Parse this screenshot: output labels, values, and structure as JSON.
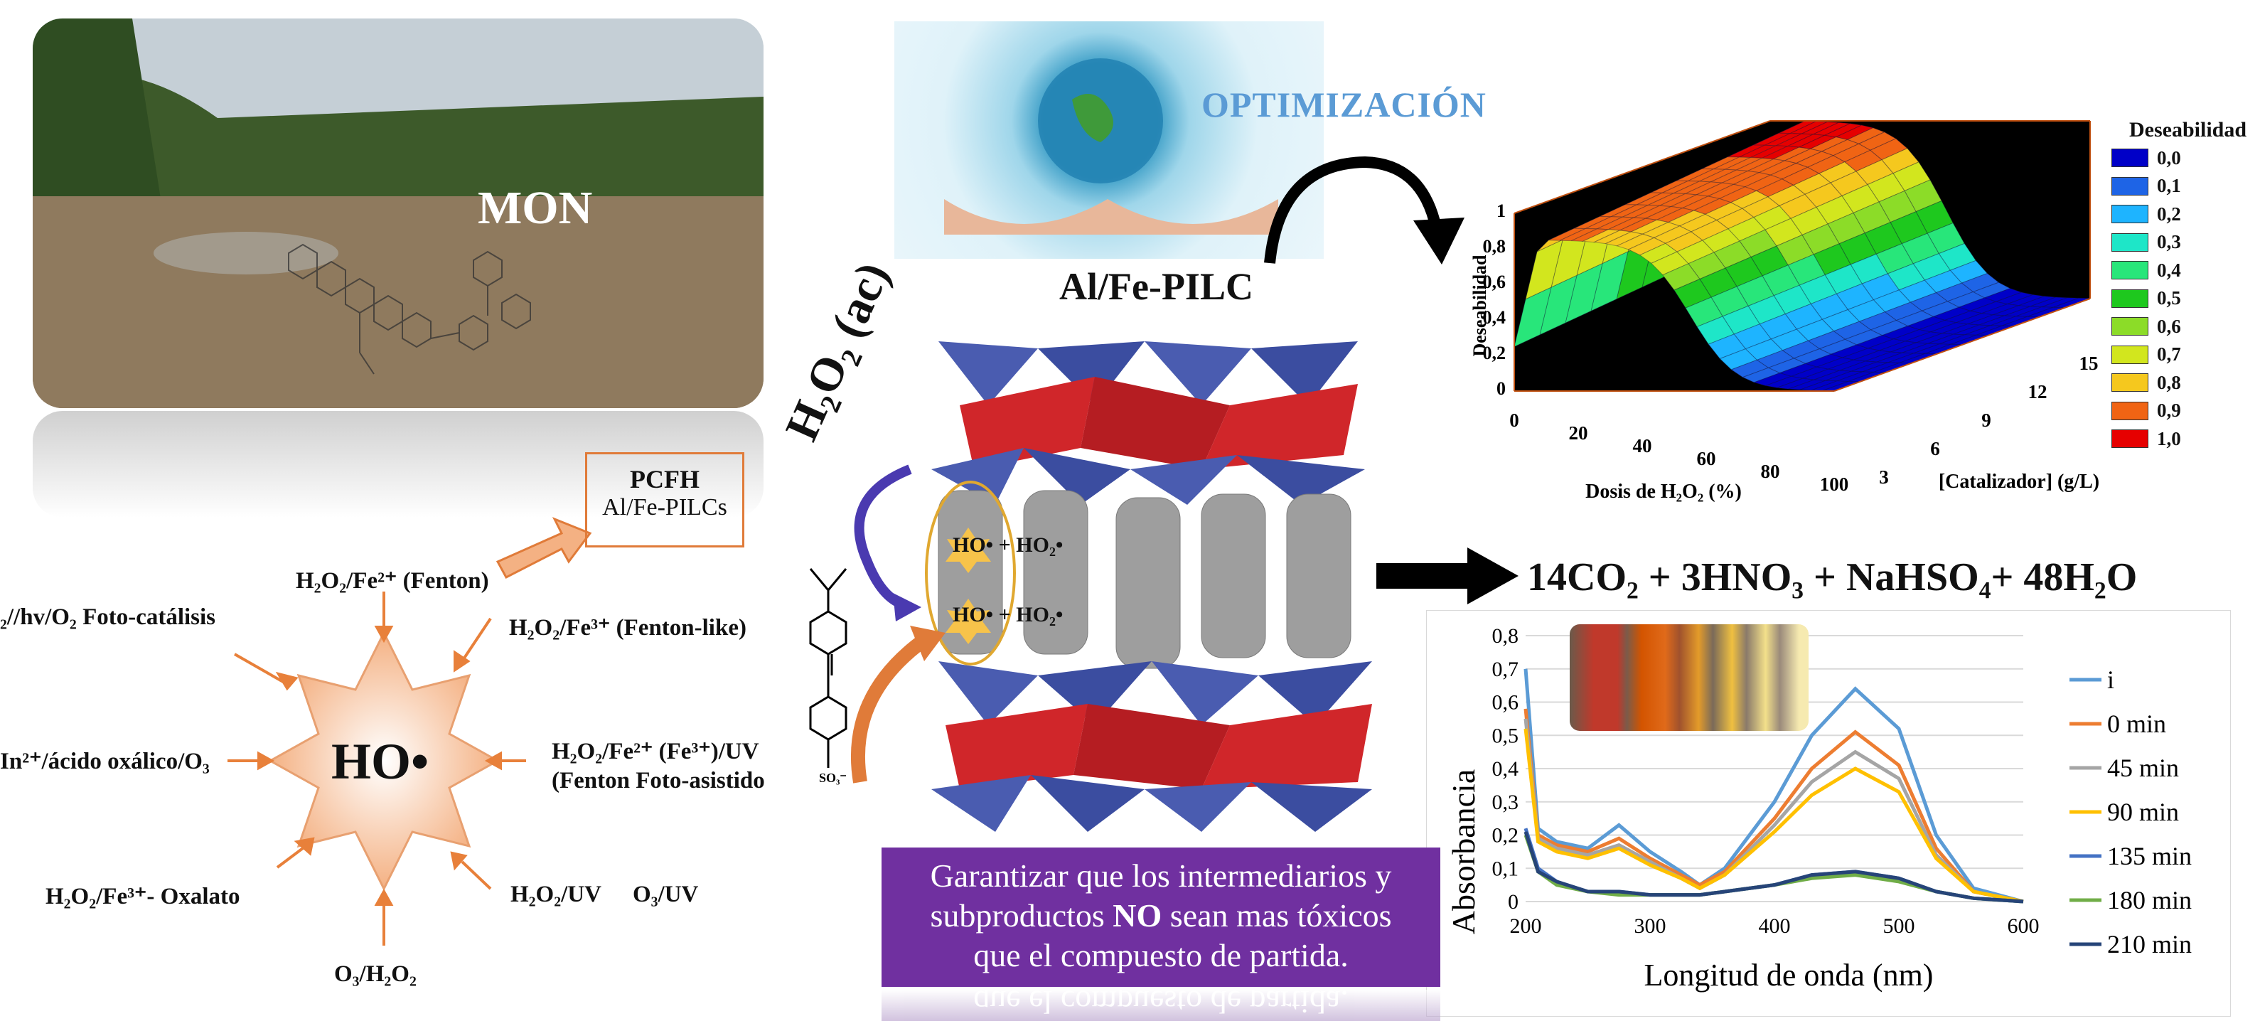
{
  "mon": {
    "label": "MON"
  },
  "optimization": {
    "label": "OPTIMIZACIÓN"
  },
  "catalyst": {
    "label": "Al/Fe-PILC"
  },
  "pcfh": {
    "line1": "PCFH",
    "line2": "Al/Fe-PILCs"
  },
  "radical": {
    "center": "HO•"
  },
  "processes": {
    "fenton": "H₂O₂/Fe²⁺ (Fenton)",
    "fenton_like": "H₂O₂/Fe³⁺ (Fenton-like)",
    "photo_catalysis": "₂//hv/O₂ Foto-catálisis",
    "oxalic": "In²⁺/ácido oxálico/O₃",
    "photo_fenton_1": "H₂O₂/Fe²⁺ (Fe³⁺)/UV",
    "photo_fenton_2": "(Fenton Foto-asistido",
    "oxalato": "H₂O₂/Fe³⁺- Oxalato",
    "h2o2_uv": "H₂O₂/UV",
    "o3_uv": "O₃/UV",
    "o3_h2o2": "O₃/H₂O₂"
  },
  "clay": {
    "reagent": "H₂O₂ (ac)",
    "radical_pair_1": "HO• + HO₂•",
    "radical_pair_2": "HO• + HO₂•",
    "sulfonate": "SO₃⁻"
  },
  "reaction": {
    "equation": "14CO₂ + 3HNO₃ + NaHSO₄+ 48H₂O"
  },
  "message": {
    "line1": "Garantizar que los intermediarios y",
    "line2_pre": "subproductos ",
    "line2_bold": "NO",
    "line2_post": " sean mas tóxicos",
    "line3": "que el compuesto de partida."
  },
  "colors": {
    "orange": "#e07b39",
    "purple": "#7030a0",
    "optim_blue": "#5b9bd5"
  },
  "chart_data": [
    {
      "type": "surface",
      "title": "",
      "zlabel": "Deseabilidad",
      "xlabel": "Dosis de H₂O₂ (%)",
      "ylabel": "[Catalizador] (g/L)",
      "x_ticks": [
        "0",
        "20",
        "40",
        "60",
        "80",
        "100"
      ],
      "y_ticks": [
        "3",
        "6",
        "9",
        "12",
        "15"
      ],
      "z_ticks": [
        "0",
        "0,2",
        "0,4",
        "0,6",
        "0,8",
        "1"
      ],
      "legend_title": "Deseabilidad",
      "legend": [
        {
          "label": "0,0",
          "color": "#0000c8"
        },
        {
          "label": "0,1",
          "color": "#1e64e6"
        },
        {
          "label": "0,2",
          "color": "#1eb4ff"
        },
        {
          "label": "0,3",
          "color": "#1ee6c8"
        },
        {
          "label": "0,4",
          "color": "#28e67a"
        },
        {
          "label": "0,5",
          "color": "#1ec81e"
        },
        {
          "label": "0,6",
          "color": "#8cdc28"
        },
        {
          "label": "0,7",
          "color": "#d2e61e"
        },
        {
          "label": "0,8",
          "color": "#f5c81e"
        },
        {
          "label": "0,9",
          "color": "#f06414"
        },
        {
          "label": "1,0",
          "color": "#e60000"
        }
      ]
    },
    {
      "type": "line",
      "xlabel": "Longitud de onda (nm)",
      "ylabel": "Absorbancia",
      "xlim": [
        200,
        600
      ],
      "ylim": [
        0,
        0.8
      ],
      "x_ticks": [
        "200",
        "300",
        "400",
        "500",
        "600"
      ],
      "y_ticks": [
        "0",
        "0,1",
        "0,2",
        "0,3",
        "0,4",
        "0,5",
        "0,6",
        "0,7",
        "0,8"
      ],
      "x": [
        200,
        210,
        225,
        250,
        275,
        300,
        325,
        340,
        360,
        400,
        430,
        465,
        500,
        530,
        560,
        600
      ],
      "series": [
        {
          "name": "i",
          "color": "#5b9bd5",
          "values": [
            0.7,
            0.22,
            0.18,
            0.16,
            0.23,
            0.15,
            0.09,
            0.05,
            0.1,
            0.3,
            0.5,
            0.64,
            0.52,
            0.2,
            0.04,
            0.0
          ]
        },
        {
          "name": "0 min",
          "color": "#ed7d31",
          "values": [
            0.58,
            0.2,
            0.17,
            0.15,
            0.19,
            0.13,
            0.08,
            0.05,
            0.09,
            0.25,
            0.4,
            0.51,
            0.41,
            0.16,
            0.03,
            0.0
          ]
        },
        {
          "name": "45 min",
          "color": "#a5a5a5",
          "values": [
            0.55,
            0.19,
            0.16,
            0.14,
            0.17,
            0.12,
            0.07,
            0.04,
            0.08,
            0.23,
            0.36,
            0.45,
            0.37,
            0.14,
            0.03,
            0.0
          ]
        },
        {
          "name": "90 min",
          "color": "#ffc000",
          "values": [
            0.52,
            0.18,
            0.15,
            0.13,
            0.16,
            0.11,
            0.07,
            0.04,
            0.08,
            0.21,
            0.32,
            0.4,
            0.33,
            0.13,
            0.03,
            0.0
          ]
        },
        {
          "name": "135 min",
          "color": "#4472c4",
          "values": [
            0.22,
            0.1,
            0.06,
            0.03,
            0.03,
            0.02,
            0.02,
            0.02,
            0.03,
            0.05,
            0.08,
            0.09,
            0.07,
            0.03,
            0.01,
            0.0
          ]
        },
        {
          "name": "180 min",
          "color": "#70ad47",
          "values": [
            0.2,
            0.09,
            0.05,
            0.03,
            0.02,
            0.02,
            0.02,
            0.02,
            0.03,
            0.05,
            0.07,
            0.08,
            0.06,
            0.03,
            0.01,
            0.0
          ]
        },
        {
          "name": "210 min",
          "color": "#264478",
          "values": [
            0.21,
            0.09,
            0.06,
            0.03,
            0.03,
            0.02,
            0.02,
            0.02,
            0.03,
            0.05,
            0.08,
            0.09,
            0.07,
            0.03,
            0.01,
            0.0
          ]
        }
      ]
    }
  ]
}
